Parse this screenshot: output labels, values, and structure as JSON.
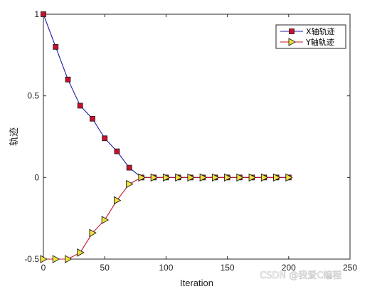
{
  "chart_data": {
    "type": "line",
    "xlabel": "Iteration",
    "ylabel": "轨迹",
    "xlim": [
      0,
      250
    ],
    "ylim": [
      -0.5,
      1
    ],
    "xticks": [
      "0",
      "50",
      "100",
      "150",
      "200",
      "250"
    ],
    "yticks": [
      "-0.5",
      "0",
      "0.5",
      "1"
    ],
    "legend_position": "top-right",
    "grid": false,
    "series": [
      {
        "name": "X轴轨迹",
        "line_color": "#1f1fa8",
        "marker": "square",
        "marker_fill": "#c8102e",
        "x": [
          0,
          10,
          20,
          30,
          40,
          50,
          60,
          70,
          80,
          90,
          100,
          110,
          120,
          130,
          140,
          150,
          160,
          170,
          180,
          190,
          200
        ],
        "y": [
          1,
          0.8,
          0.6,
          0.44,
          0.36,
          0.24,
          0.16,
          0.06,
          0,
          0,
          0,
          0,
          0,
          0,
          0,
          0,
          0,
          0,
          0,
          0,
          0
        ]
      },
      {
        "name": "Y轴轨迹",
        "line_color": "#c8102e",
        "marker": "triangle-right",
        "marker_fill": "#f2e33a",
        "x": [
          0,
          10,
          20,
          30,
          40,
          50,
          60,
          70,
          80,
          90,
          100,
          110,
          120,
          130,
          140,
          150,
          160,
          170,
          180,
          190,
          200
        ],
        "y": [
          -0.5,
          -0.5,
          -0.5,
          -0.46,
          -0.34,
          -0.26,
          -0.14,
          -0.04,
          0,
          0,
          0,
          0,
          0,
          0,
          0,
          0,
          0,
          0,
          0,
          0,
          0
        ]
      }
    ]
  },
  "watermark": "CSDN @我爱C编程"
}
